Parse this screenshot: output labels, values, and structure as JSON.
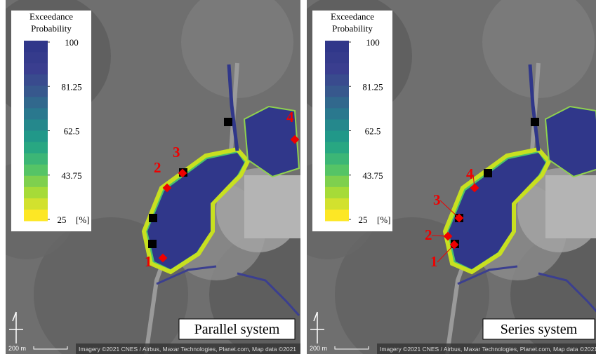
{
  "legend": {
    "title_lines": [
      "Exceedance",
      "Probability"
    ],
    "range": [
      25,
      100
    ],
    "ticks": [
      100,
      81.25,
      62.5,
      43.75,
      25
    ],
    "unit": "[%]",
    "bands": 16,
    "colormap": [
      "#fde725",
      "#a0da39",
      "#4ac16d",
      "#1fa187",
      "#277f8e",
      "#365c8d",
      "#3b3f8f",
      "#30378a"
    ]
  },
  "panels": [
    {
      "title": "Parallel system",
      "point_labels": [
        "1",
        "2",
        "3",
        "4"
      ],
      "scale": "200 m",
      "attribution": "Imagery ©2021 CNES / Airbus, Maxar Technologies, Planet.com, Map data ©2021"
    },
    {
      "title": "Series system",
      "point_labels": [
        "1",
        "2",
        "3",
        "4"
      ],
      "scale": "200 m",
      "attribution": "Imagery ©2021 CNES / Airbus, Maxar Technologies, Planet.com, Map data ©2021"
    }
  ]
}
